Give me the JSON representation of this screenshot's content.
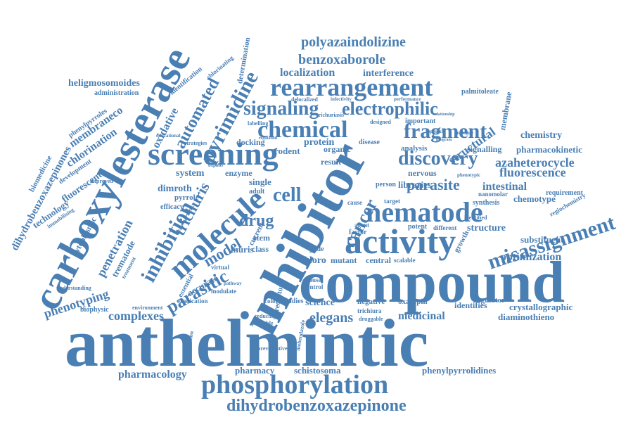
{
  "cloud": {
    "color": "#4a7fb4",
    "words": [
      "anthelmintic",
      "compound",
      "inhibitor",
      "carboxylesterase",
      "screening",
      "molecule",
      "activity",
      "nematode",
      "phosphorylation",
      "rearrangement",
      "chemical",
      "dihydrobenzoxazepinone",
      "signaling",
      "electrophilic",
      "fragment",
      "discovery",
      "parasite",
      "misassignment",
      "cancer",
      "cell",
      "inhibition",
      "pyrimidine",
      "automated",
      "trichuris",
      "drug",
      "model",
      "parasitic",
      "polyazaindolizine",
      "benzoxaborole",
      "localization",
      "interference",
      "complexes",
      "phenotyping",
      "penetration",
      "elegans",
      "science",
      "pharmacology",
      "structural",
      "azaheterocycle",
      "fluorescence",
      "optimization",
      "chlorination",
      "membraneco",
      "heligmosomoides",
      "dihydrobenzoxazepinones",
      "biomedicine",
      "technology",
      "fluorescent",
      "development",
      "oxidative",
      "system",
      "dimroth",
      "stem",
      "chloro",
      "mutant",
      "central",
      "medicinal",
      "crystallographic",
      "diaminothieno",
      "phenylpyrrolidines",
      "pharmacy",
      "schistosoma",
      "intestinal",
      "signalling",
      "pharmacokinetic",
      "chemistry",
      "chemotype",
      "structure",
      "substituent",
      "regiochemistry",
      "growth",
      "nervous",
      "libraries",
      "analysis",
      "identifies",
      "regulator",
      "oxazepin",
      "negative",
      "potent",
      "protein",
      "result",
      "enzyme",
      "single",
      "adult",
      "muris",
      "class",
      "accurate",
      "essential",
      "eradication",
      "biophysic",
      "understanding",
      "cytoplasmic",
      "trematode",
      "treatment",
      "efficacy",
      "pyrrole",
      "immobilising",
      "improved",
      "phenylpyrroles",
      "administration",
      "identification",
      "chlorinating",
      "determination",
      "docking",
      "rodent",
      "organic",
      "membrane",
      "palmitoleate",
      "synthesis",
      "requirement",
      "disease",
      "person",
      "target",
      "nanomolar",
      "identified",
      "different",
      "cause",
      "agent",
      "factor",
      "studies",
      "receptor",
      "virtual",
      "modulate",
      "environment",
      "competition",
      "preventative",
      "trichiura",
      "druggable",
      "reducing",
      "probable",
      "mebendazole",
      "mouse",
      "control",
      "glide",
      "scalable",
      "colon",
      "current",
      "important",
      "designed",
      "delocalized",
      "trichuriasis",
      "labelling",
      "regulation",
      "educational",
      "strategies",
      "infectivity",
      "performance",
      "phenotypic",
      "approach",
      "program",
      "analogue",
      "relationship",
      "pathway",
      "oxphos"
    ]
  }
}
